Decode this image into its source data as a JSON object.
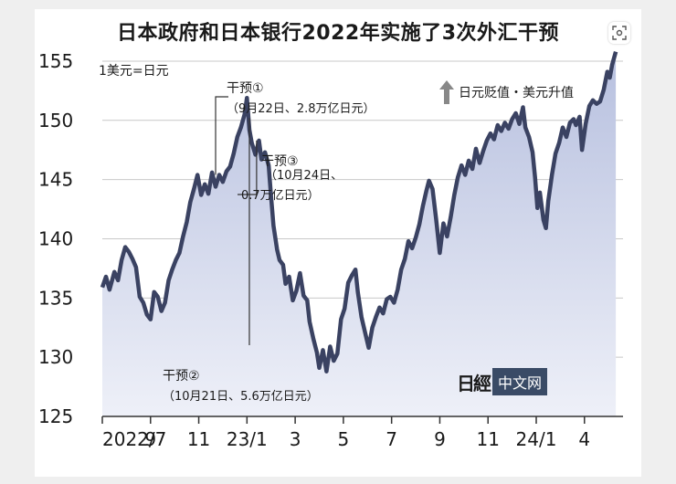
{
  "title": "日本政府和日本银行2022年实施了3次外汇干预",
  "chart_data": {
    "type": "line",
    "unit_label": "1美元=日元",
    "legend_note": "日元贬值・美元升值",
    "ylim": [
      125,
      156
    ],
    "yticks": [
      125,
      130,
      135,
      140,
      145,
      150,
      155
    ],
    "xticks": [
      "2022/7",
      "9",
      "11",
      "23/1",
      "3",
      "5",
      "7",
      "9",
      "11",
      "24/1",
      "4"
    ],
    "xlim": [
      0,
      21.6
    ],
    "series": [
      {
        "values": [
          [
            0.0,
            135.9
          ],
          [
            0.15,
            136.8
          ],
          [
            0.3,
            135.7
          ],
          [
            0.5,
            137.2
          ],
          [
            0.65,
            136.5
          ],
          [
            0.8,
            138.2
          ],
          [
            0.95,
            139.3
          ],
          [
            1.1,
            138.9
          ],
          [
            1.25,
            138.3
          ],
          [
            1.4,
            137.6
          ],
          [
            1.55,
            135.1
          ],
          [
            1.7,
            134.6
          ],
          [
            1.85,
            133.6
          ],
          [
            2.0,
            133.2
          ],
          [
            2.15,
            135.5
          ],
          [
            2.3,
            135.1
          ],
          [
            2.45,
            133.9
          ],
          [
            2.6,
            134.6
          ],
          [
            2.75,
            136.5
          ],
          [
            2.9,
            137.4
          ],
          [
            3.05,
            138.2
          ],
          [
            3.2,
            138.8
          ],
          [
            3.35,
            140.2
          ],
          [
            3.5,
            141.4
          ],
          [
            3.65,
            143.1
          ],
          [
            3.8,
            144.2
          ],
          [
            3.95,
            145.4
          ],
          [
            4.1,
            143.7
          ],
          [
            4.25,
            144.6
          ],
          [
            4.4,
            143.8
          ],
          [
            4.55,
            145.6
          ],
          [
            4.7,
            144.4
          ],
          [
            4.85,
            145.4
          ],
          [
            5.0,
            144.8
          ],
          [
            5.15,
            145.7
          ],
          [
            5.3,
            146.1
          ],
          [
            5.45,
            147.2
          ],
          [
            5.6,
            148.6
          ],
          [
            5.75,
            149.4
          ],
          [
            5.9,
            150.5
          ],
          [
            6.0,
            151.9
          ],
          [
            6.1,
            149.2
          ],
          [
            6.2,
            148.1
          ],
          [
            6.35,
            147.1
          ],
          [
            6.5,
            148.3
          ],
          [
            6.6,
            146.7
          ],
          [
            6.75,
            147.3
          ],
          [
            6.9,
            146.2
          ],
          [
            7.0,
            143.6
          ],
          [
            7.1,
            141.1
          ],
          [
            7.25,
            139.1
          ],
          [
            7.35,
            138.2
          ],
          [
            7.5,
            137.8
          ],
          [
            7.6,
            136.2
          ],
          [
            7.75,
            136.8
          ],
          [
            7.9,
            134.8
          ],
          [
            8.05,
            135.6
          ],
          [
            8.2,
            137.1
          ],
          [
            8.35,
            135.2
          ],
          [
            8.5,
            134.8
          ],
          [
            8.6,
            133.0
          ],
          [
            8.75,
            131.6
          ],
          [
            8.9,
            130.4
          ],
          [
            9.0,
            129.1
          ],
          [
            9.15,
            130.6
          ],
          [
            9.3,
            128.8
          ],
          [
            9.45,
            130.9
          ],
          [
            9.6,
            129.7
          ],
          [
            9.75,
            130.3
          ],
          [
            9.9,
            133.2
          ],
          [
            10.05,
            134.1
          ],
          [
            10.2,
            136.3
          ],
          [
            10.35,
            136.9
          ],
          [
            10.5,
            137.4
          ],
          [
            10.6,
            135.5
          ],
          [
            10.75,
            133.4
          ],
          [
            10.9,
            132.1
          ],
          [
            11.05,
            130.8
          ],
          [
            11.2,
            132.5
          ],
          [
            11.35,
            133.4
          ],
          [
            11.5,
            134.2
          ],
          [
            11.65,
            133.7
          ],
          [
            11.8,
            134.9
          ],
          [
            11.95,
            135.1
          ],
          [
            12.1,
            134.6
          ],
          [
            12.25,
            135.7
          ],
          [
            12.4,
            137.4
          ],
          [
            12.55,
            138.3
          ],
          [
            12.7,
            139.8
          ],
          [
            12.85,
            139.2
          ],
          [
            13.0,
            140.1
          ],
          [
            13.15,
            141.2
          ],
          [
            13.3,
            142.8
          ],
          [
            13.45,
            144.1
          ],
          [
            13.55,
            144.9
          ],
          [
            13.7,
            144.2
          ],
          [
            13.85,
            141.6
          ],
          [
            14.0,
            138.8
          ],
          [
            14.15,
            141.3
          ],
          [
            14.3,
            140.2
          ],
          [
            14.45,
            141.8
          ],
          [
            14.6,
            143.7
          ],
          [
            14.75,
            145.2
          ],
          [
            14.9,
            146.2
          ],
          [
            15.05,
            145.4
          ],
          [
            15.2,
            146.6
          ],
          [
            15.35,
            145.9
          ],
          [
            15.5,
            147.6
          ],
          [
            15.65,
            146.4
          ],
          [
            15.8,
            147.4
          ],
          [
            15.95,
            148.3
          ],
          [
            16.1,
            148.9
          ],
          [
            16.25,
            148.4
          ],
          [
            16.4,
            149.6
          ],
          [
            16.55,
            149.1
          ],
          [
            16.7,
            149.8
          ],
          [
            16.85,
            149.3
          ],
          [
            17.0,
            150.1
          ],
          [
            17.15,
            150.6
          ],
          [
            17.3,
            149.7
          ],
          [
            17.45,
            151.1
          ],
          [
            17.55,
            149.4
          ],
          [
            17.7,
            148.6
          ],
          [
            17.85,
            147.3
          ],
          [
            17.95,
            145.2
          ],
          [
            18.05,
            142.6
          ],
          [
            18.15,
            143.9
          ],
          [
            18.3,
            141.6
          ],
          [
            18.4,
            140.9
          ],
          [
            18.5,
            143.2
          ],
          [
            18.65,
            145.4
          ],
          [
            18.8,
            147.2
          ],
          [
            18.95,
            148.1
          ],
          [
            19.1,
            149.4
          ],
          [
            19.25,
            148.6
          ],
          [
            19.4,
            149.8
          ],
          [
            19.55,
            150.1
          ],
          [
            19.65,
            149.6
          ],
          [
            19.8,
            150.3
          ],
          [
            19.9,
            147.5
          ],
          [
            20.05,
            149.7
          ],
          [
            20.2,
            151.2
          ],
          [
            20.35,
            151.7
          ],
          [
            20.5,
            151.4
          ],
          [
            20.65,
            151.6
          ],
          [
            20.8,
            152.6
          ],
          [
            20.95,
            154.1
          ],
          [
            21.05,
            153.6
          ],
          [
            21.15,
            154.7
          ],
          [
            21.3,
            155.8
          ]
        ]
      }
    ],
    "annotations": [
      {
        "name": "intervention-1",
        "label": "干预①",
        "detail": "（9月22日、2.8万亿日元）",
        "x": 4.7,
        "y": 145.4
      },
      {
        "name": "intervention-3",
        "label": "干预③",
        "detail": "（10月24日、",
        "detail2": "0.7万亿日元）",
        "x": 6.4,
        "y": 148.3
      },
      {
        "name": "intervention-2",
        "label": "干预②",
        "detail": "（10月21日、5.6万亿日元）",
        "x": 6.1,
        "y": 150.2
      }
    ]
  },
  "logo": {
    "mark": "日經",
    "box_text": "中文网"
  }
}
